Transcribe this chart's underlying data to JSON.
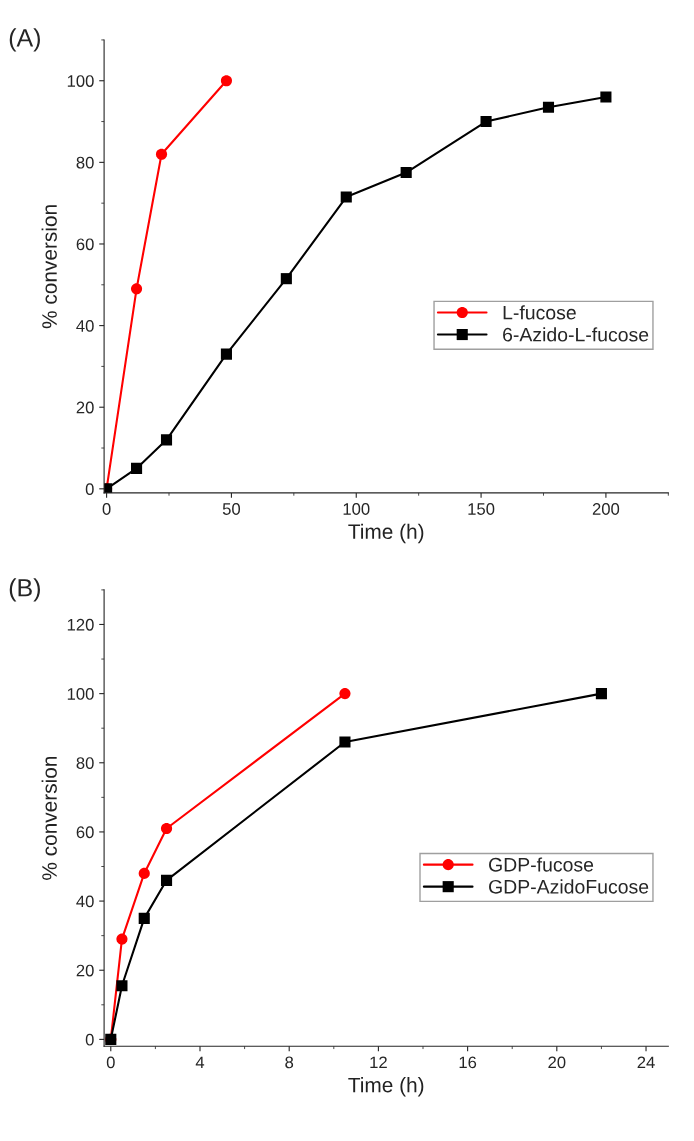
{
  "chart_data": [
    {
      "type": "line",
      "title": "(A)",
      "xlabel": "Time (h)",
      "ylabel": "% conversion",
      "xlim": [
        -1,
        225
      ],
      "ylim": [
        -1,
        110
      ],
      "xticks": [
        0,
        50,
        100,
        150,
        200
      ],
      "yticks": [
        0,
        20,
        40,
        60,
        80,
        100
      ],
      "legend": "right",
      "grid": false,
      "series": [
        {
          "name": "L-fucose",
          "color": "#ff0000",
          "marker": "circle",
          "x": [
            0,
            12,
            22,
            48
          ],
          "values": [
            0,
            49,
            82,
            100
          ]
        },
        {
          "name": "6-Azido-L-fucose",
          "color": "#000000",
          "marker": "square",
          "x": [
            0,
            12,
            24,
            48,
            72,
            96,
            120,
            152,
            177,
            200
          ],
          "values": [
            0,
            5,
            12,
            33,
            51.5,
            71.5,
            77.5,
            90,
            93.5,
            96
          ]
        }
      ]
    },
    {
      "type": "line",
      "title": "(B)",
      "xlabel": "Time (h)",
      "ylabel": "% conversion",
      "xlim": [
        -0.3,
        25
      ],
      "ylim": [
        -2,
        130
      ],
      "xticks": [
        0,
        4,
        8,
        12,
        16,
        20,
        24
      ],
      "yticks": [
        0,
        20,
        40,
        60,
        80,
        100,
        120
      ],
      "legend": "right",
      "grid": false,
      "series": [
        {
          "name": "GDP-fucose",
          "color": "#ff0000",
          "marker": "circle",
          "x": [
            0,
            0.5,
            1.5,
            2.5,
            10.5
          ],
          "values": [
            0,
            29,
            48,
            61,
            100
          ]
        },
        {
          "name": "GDP-AzidoFucose",
          "color": "#000000",
          "marker": "square",
          "x": [
            0,
            0.5,
            1.5,
            2.5,
            10.5,
            22
          ],
          "values": [
            0,
            15.5,
            35,
            46,
            86,
            100
          ]
        }
      ]
    }
  ]
}
